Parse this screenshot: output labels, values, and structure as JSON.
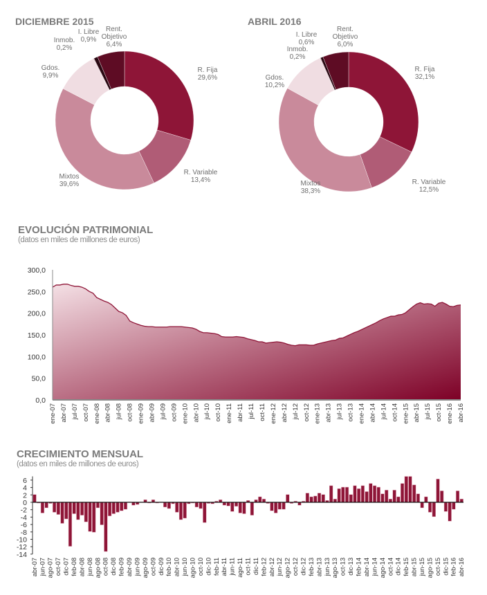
{
  "chart_data": [
    {
      "type": "pie",
      "title": "DICIEMBRE 2015",
      "donut": true,
      "slices": [
        {
          "label": "R. Fija",
          "value": 29.6,
          "display": "29,6%",
          "color": "#8e1537"
        },
        {
          "label": "R. Variable",
          "value": 13.4,
          "display": "13,4%",
          "color": "#b05c76"
        },
        {
          "label": "Mixtos",
          "value": 39.6,
          "display": "39,6%",
          "color": "#c98a9b"
        },
        {
          "label": "Gdos.",
          "value": 9.9,
          "display": "9,9%",
          "color": "#f0dde2"
        },
        {
          "label": "Inmob.",
          "value": 0.2,
          "display": "0,2%",
          "color": "#d8b4bf"
        },
        {
          "label": "I. Libre",
          "value": 0.9,
          "display": "0,9%",
          "color": "#2a0812"
        },
        {
          "label": "Rent. Objetivo",
          "value": 6.4,
          "display": "6,4%",
          "color": "#5e0c24"
        }
      ]
    },
    {
      "type": "pie",
      "title": "ABRIL 2016",
      "donut": true,
      "slices": [
        {
          "label": "R. Fija",
          "value": 32.1,
          "display": "32,1%",
          "color": "#8e1537"
        },
        {
          "label": "R. Variable",
          "value": 12.5,
          "display": "12,5%",
          "color": "#b05c76"
        },
        {
          "label": "Mixtos",
          "value": 38.3,
          "display": "38,3%",
          "color": "#c98a9b"
        },
        {
          "label": "Gdos.",
          "value": 10.2,
          "display": "10,2%",
          "color": "#f0dde2"
        },
        {
          "label": "Inmob.",
          "value": 0.2,
          "display": "0,2%",
          "color": "#d8b4bf"
        },
        {
          "label": "I. Libre",
          "value": 0.6,
          "display": "0,6%",
          "color": "#2a0812"
        },
        {
          "label": "Rent. Objetivo",
          "value": 6.0,
          "display": "6,0%",
          "color": "#5e0c24"
        }
      ]
    },
    {
      "type": "area",
      "title": "EVOLUCIÓN PATRIMONIAL",
      "subtitle": "(datos en miles de millones de euros)",
      "ylim": [
        0,
        300
      ],
      "yticks": [
        "0,0",
        "50,0",
        "100,0",
        "150,0",
        "200,0",
        "250,0",
        "300,0"
      ],
      "x_start": "ene-07",
      "x_end": "abr-16",
      "xtick_labels": [
        "ene-07",
        "abr-07",
        "jul-07",
        "oct-07",
        "ene-08",
        "abr-08",
        "jul-08",
        "oct-08",
        "ene-09",
        "abr-09",
        "jul-09",
        "oct-09",
        "ene-10",
        "abr-10",
        "jul-10",
        "oct-10",
        "ene-11",
        "abr-11",
        "jul-11",
        "oct-11",
        "ene-12",
        "abr-12",
        "jul-12",
        "oct-12",
        "ene-13",
        "abr-13",
        "jul-13",
        "oct-13",
        "ene-14",
        "abr-14",
        "jul-14",
        "oct-14",
        "ene-15",
        "abr-15",
        "jul-15",
        "oct-15",
        "ene-16",
        "abr-16"
      ],
      "values": [
        260,
        265,
        265,
        267,
        267,
        264,
        262,
        262,
        260,
        256,
        250,
        246,
        236,
        232,
        228,
        225,
        220,
        212,
        204,
        201,
        195,
        182,
        178,
        175,
        172,
        170,
        169,
        169,
        168,
        168,
        168,
        168,
        169,
        169,
        169,
        169,
        168,
        167,
        166,
        163,
        158,
        155,
        155,
        154,
        153,
        151,
        146,
        145,
        145,
        145,
        146,
        145,
        144,
        141,
        139,
        137,
        134,
        134,
        131,
        132,
        133,
        134,
        133,
        131,
        128,
        126,
        125,
        127,
        127,
        127,
        126,
        126,
        129,
        131,
        133,
        135,
        137,
        138,
        142,
        143,
        147,
        151,
        155,
        158,
        162,
        166,
        170,
        174,
        178,
        183,
        187,
        190,
        193,
        193,
        196,
        197,
        201,
        208,
        215,
        221,
        224,
        221,
        222,
        221,
        216,
        223,
        225,
        221,
        216,
        215,
        218,
        219
      ],
      "colors": {
        "line": "#8e1537",
        "fill_light": "#f4e0e5",
        "fill_dark": "#7d0026"
      }
    },
    {
      "type": "bar",
      "title": "CRECIMIENTO MENSUAL",
      "subtitle": "(datos en miles de millones de euros)",
      "ylim": [
        -14,
        7
      ],
      "yticks": [
        "-14",
        "-12",
        "-10",
        "-8",
        "-6",
        "-4",
        "-2",
        "0",
        "2",
        "4",
        "6"
      ],
      "x_start": "abr-07",
      "x_end": "abr-16",
      "xtick_labels": [
        "abr-07",
        "jun-07",
        "ago-07",
        "oct-07",
        "dic-07",
        "feb-08",
        "abr-08",
        "jun-08",
        "ago-08",
        "oct-08",
        "dic-08",
        "feb-09",
        "abr-09",
        "jun-09",
        "ago-09",
        "oct-09",
        "dic-09",
        "feb-10",
        "abr-10",
        "jun-10",
        "ago-10",
        "oct-10",
        "dic-10",
        "feb-11",
        "abr-11",
        "jun-11",
        "ago-11",
        "oct-11",
        "dic-11",
        "feb-12",
        "abr-12",
        "jun-12",
        "ago-12",
        "oct-12",
        "dic-12",
        "feb-13",
        "abr-13",
        "jun-13",
        "ago-13",
        "oct-13",
        "dic-13",
        "feb-14",
        "abr-14",
        "jun-14",
        "ago-14",
        "oct-14",
        "dic-14",
        "feb-15",
        "abr-15",
        "jun-15",
        "ago-15",
        "oct-15",
        "dic-15",
        "feb-16",
        "abr-16"
      ],
      "values": [
        2.1,
        -0.2,
        -2.9,
        -1.5,
        -0.3,
        -2.7,
        -3.3,
        -5.7,
        -4.5,
        -11.9,
        -3.1,
        -4.7,
        -3.5,
        -5.3,
        -7.9,
        -8.1,
        -1.5,
        -6.1,
        -13.3,
        -3.7,
        -3.1,
        -2.7,
        -2.3,
        -1.9,
        0.1,
        -0.8,
        -0.6,
        0.1,
        0.7,
        -0.2,
        0.7,
        -0.2,
        0.1,
        -1.3,
        -1.7,
        -0.4,
        -2.7,
        -4.7,
        -4.3,
        -0.4,
        -0.2,
        -1.3,
        -1.7,
        -5.5,
        -0.3,
        -0.4,
        0.3,
        0.7,
        -0.8,
        -1.0,
        -2.5,
        -1.1,
        -2.9,
        -3.1,
        0.5,
        -3.5,
        0.7,
        1.5,
        0.9,
        -0.3,
        -2.3,
        -2.9,
        -1.9,
        -1.9,
        2.1,
        -0.3,
        0.3,
        -0.8,
        0.3,
        2.5,
        1.5,
        1.7,
        2.5,
        2.1,
        0.5,
        4.5,
        0.9,
        3.7,
        4.1,
        4.1,
        2.1,
        4.5,
        3.7,
        4.5,
        2.9,
        5.1,
        4.5,
        4.1,
        2.3,
        3.3,
        0.9,
        3.3,
        1.5,
        5.1,
        7.0,
        7.0,
        4.7,
        2.3,
        -1.5,
        1.5,
        -2.7,
        -3.9,
        6.3,
        3.1,
        -2.5,
        -5.1,
        -1.9,
        3.1,
        0.9
      ],
      "colors": {
        "bar": "#8e1537",
        "bar_edge": "#e8b8c6"
      }
    }
  ]
}
